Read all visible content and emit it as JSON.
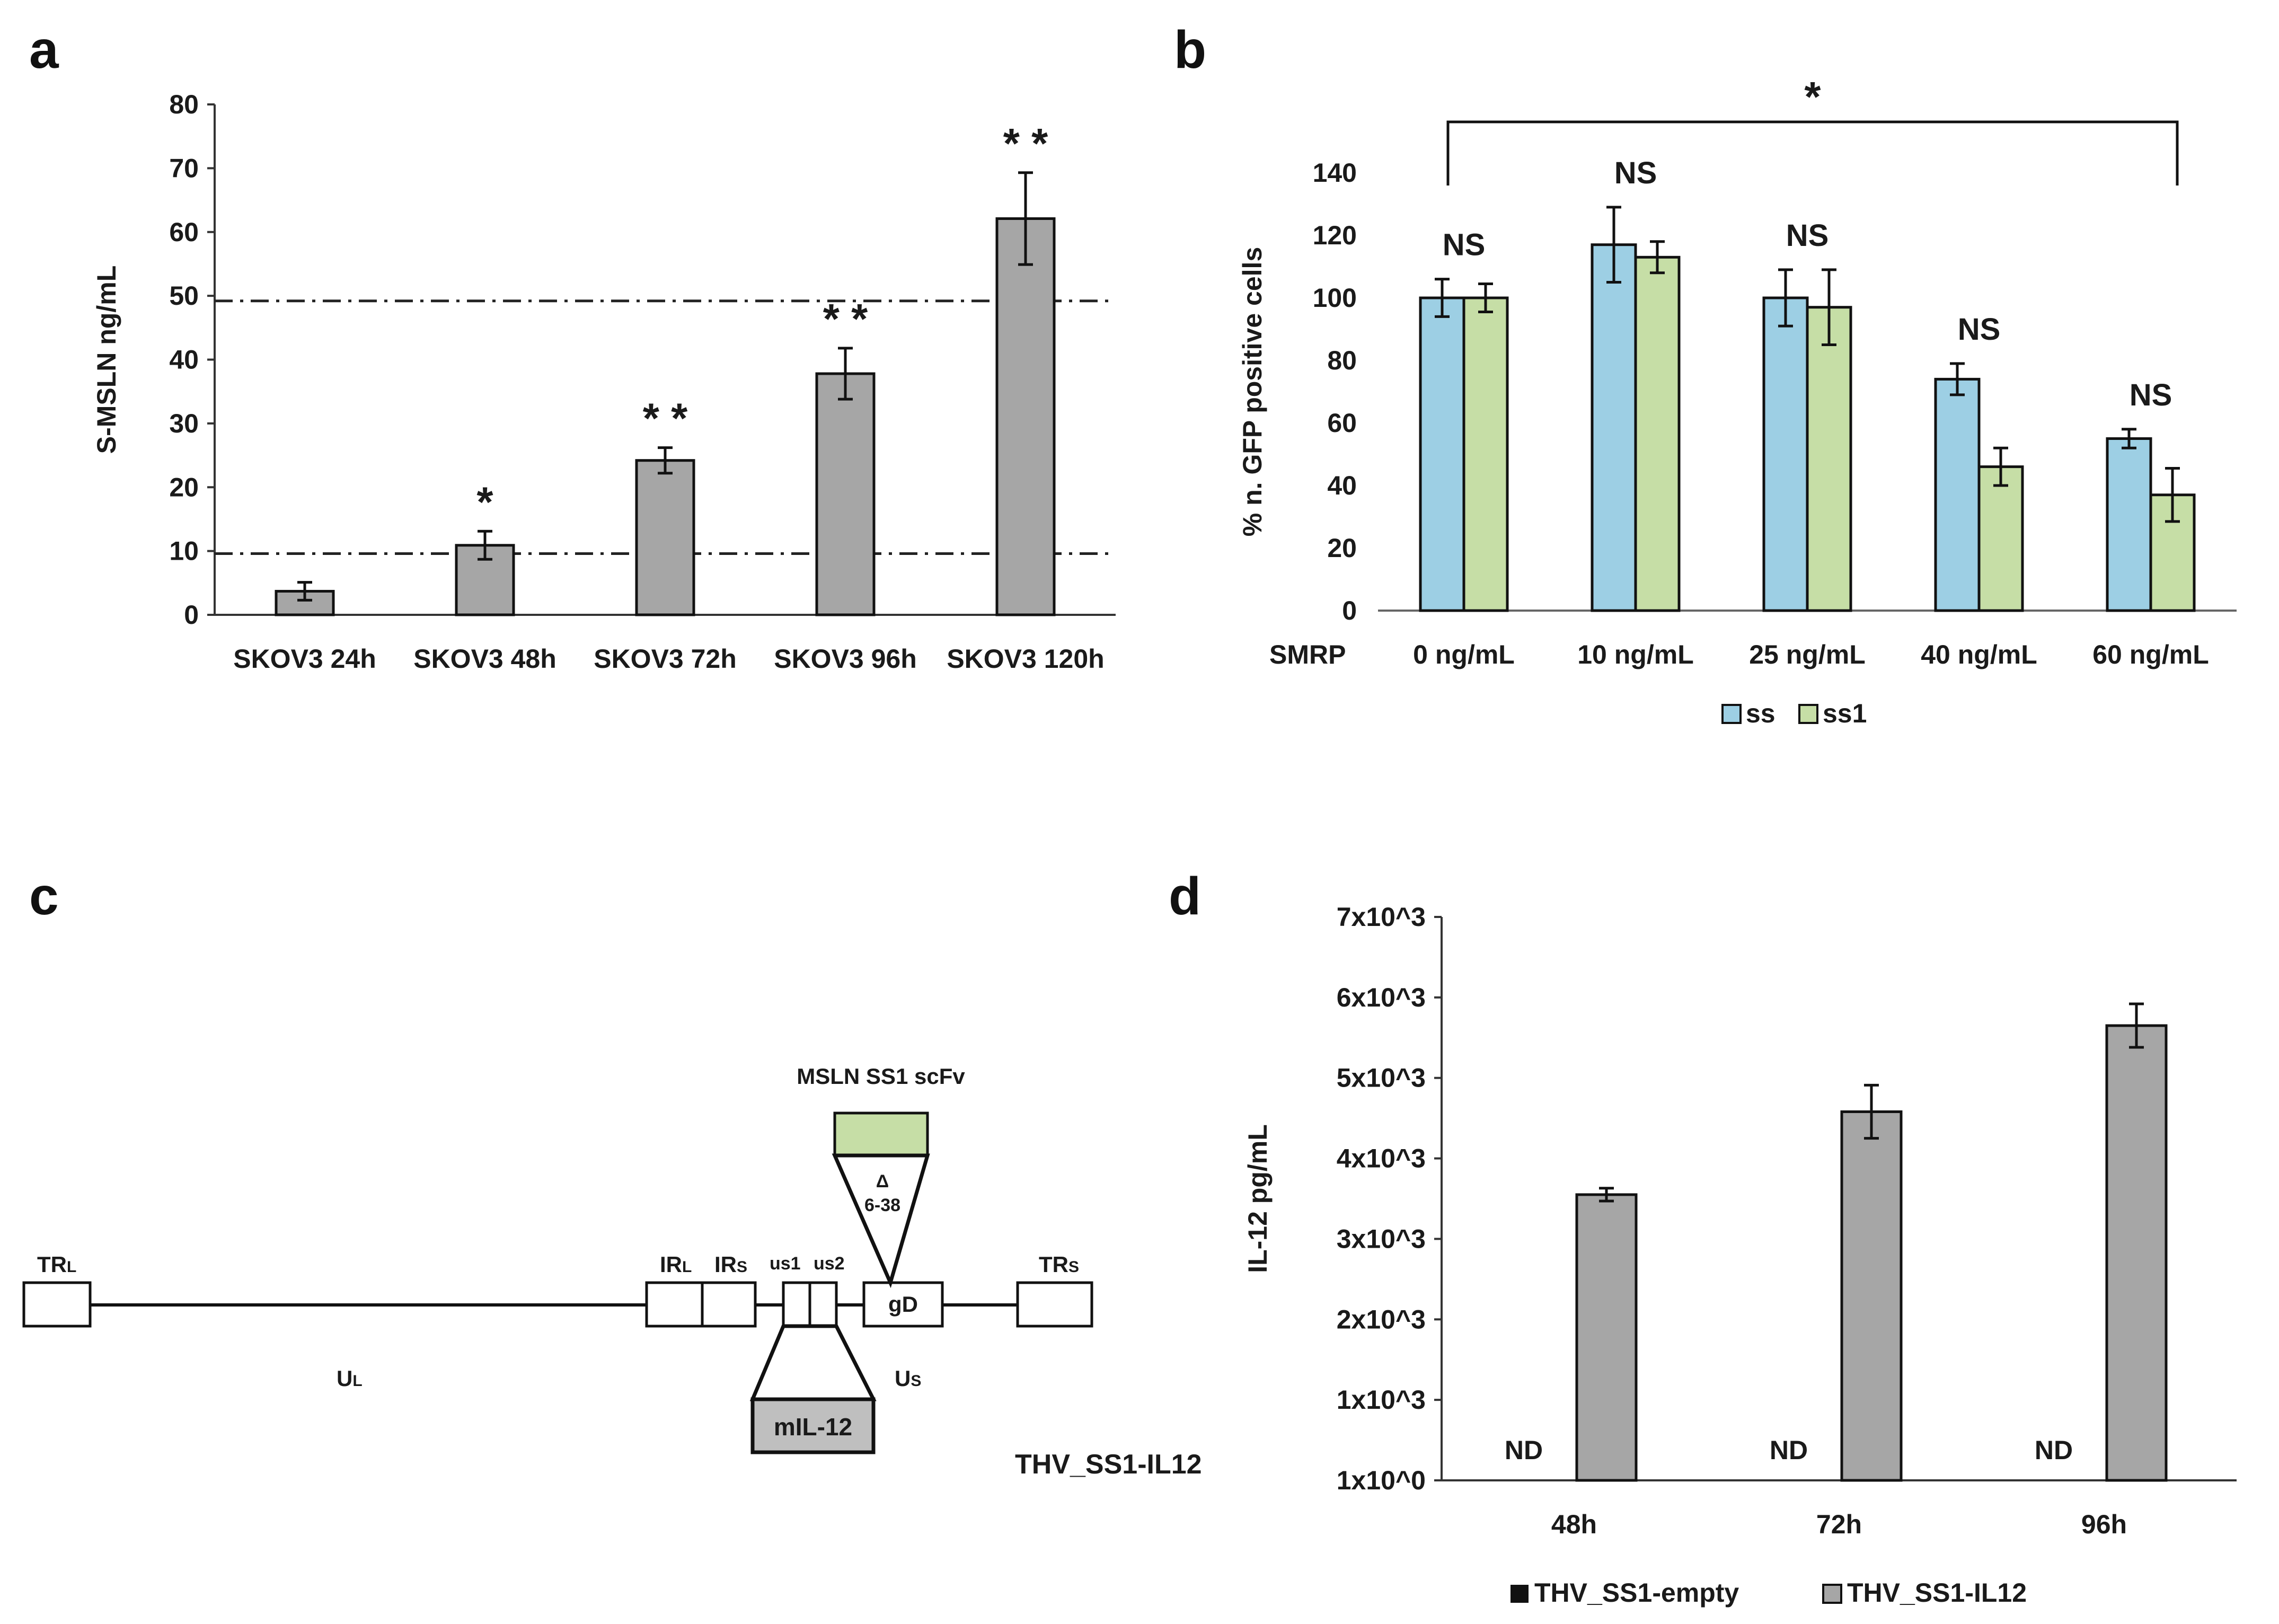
{
  "panel_letters": {
    "a": "a",
    "b": "b",
    "c": "c",
    "d": "d"
  },
  "chart_data": [
    {
      "panel": "a",
      "type": "bar",
      "ylabel": "S-MSLN ng/mL",
      "ylim": [
        0,
        80
      ],
      "yticks": [
        0,
        10,
        20,
        30,
        40,
        50,
        60,
        70,
        80
      ],
      "categories": [
        "SKOV3 24h",
        "SKOV3 48h",
        "SKOV3 72h",
        "SKOV3 96h",
        "SKOV3 120h"
      ],
      "values": [
        3.7,
        10.9,
        24.2,
        37.8,
        62.1
      ],
      "errors": [
        1.4,
        2.2,
        2.0,
        4.0,
        7.2
      ],
      "significance": [
        "",
        "*",
        "**",
        "**",
        "**"
      ],
      "reference_lines": [
        9.6,
        49.2
      ],
      "bar_color": "#a6a6a6"
    },
    {
      "panel": "b",
      "type": "bar",
      "ylabel": "% n. GFP positive cells",
      "ylim": [
        0,
        140
      ],
      "yticks": [
        0,
        20,
        40,
        60,
        80,
        100,
        120,
        140
      ],
      "xlabel_prefix": "SMRP",
      "categories": [
        "0 ng/mL",
        "10 ng/mL",
        "25 ng/mL",
        "40 ng/mL",
        "60 ng/mL"
      ],
      "series": [
        {
          "name": "ss",
          "color": "#9dcfe4",
          "values": [
            100,
            117,
            100,
            74,
            55
          ],
          "errors": [
            6,
            12,
            9,
            5,
            3
          ]
        },
        {
          "name": "ss1",
          "color": "#c6dea6",
          "values": [
            100,
            113,
            97,
            46,
            37
          ],
          "errors": [
            4.5,
            5,
            12,
            6,
            8.5
          ]
        }
      ],
      "group_annotations": [
        "NS",
        "NS",
        "NS",
        "NS",
        "NS"
      ],
      "bracket": {
        "from": 0,
        "to": 4,
        "label": "*"
      },
      "legend_position": "bottom"
    },
    {
      "panel": "d",
      "type": "bar",
      "ylabel": "IL-12 pg/mL",
      "ylim": [
        0,
        7000
      ],
      "ytick_labels": [
        "1x10^0",
        "1x10^3",
        "2x10^3",
        "3x10^3",
        "4x10^3",
        "5x10^3",
        "6x10^3",
        "7x10^3"
      ],
      "categories": [
        "48h",
        "72h",
        "96h"
      ],
      "series": [
        {
          "name": "THV_SS1-empty",
          "color": "#111111",
          "values": [
            "ND",
            "ND",
            "ND"
          ]
        },
        {
          "name": "THV_SS1-IL12",
          "color": "#a6a6a6",
          "values": [
            3550,
            4580,
            5650
          ],
          "errors": [
            80,
            330,
            270
          ]
        }
      ],
      "legend_position": "bottom"
    }
  ],
  "diagram_c": {
    "labels": {
      "trl": "TRL",
      "trl_base": "TR",
      "trl_sub": "L",
      "ul_base": "U",
      "ul_sub": "L",
      "irl_base": "IR",
      "irl_sub": "L",
      "irs_base": "IR",
      "irs_sub": "S",
      "us1": "us1",
      "us2": "us2",
      "gd": "gD",
      "trs_base": "TR",
      "trs_sub": "S",
      "us_base": "U",
      "us_sub": "S",
      "mil12": "mIL-12",
      "scfv": "MSLN SS1 scFv",
      "delta": "Δ",
      "delta_range": "6-38",
      "construct": "THV_SS1-IL12"
    },
    "colors": {
      "scfv_fill": "#c6dea6",
      "mil12_fill": "#bfbfbf"
    }
  }
}
